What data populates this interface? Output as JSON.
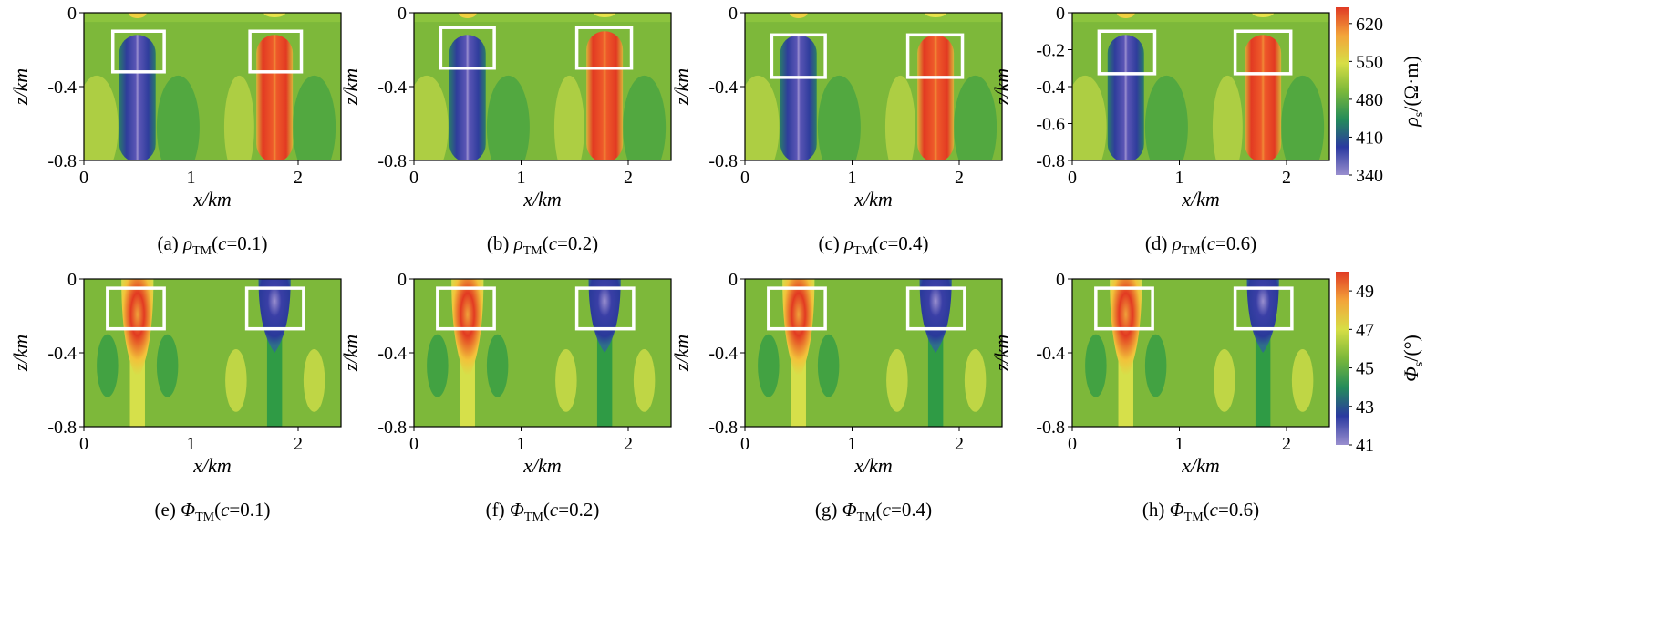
{
  "chart_data": [
    {
      "type": "heatmap",
      "caption": {
        "letter": "(a) ",
        "symbol": "ρ",
        "sub": "TM",
        "pre": "(",
        "ital": "c",
        "post": "=0.1)"
      },
      "quantity": "resistivity",
      "xlabel": "x/km",
      "ylabel": "z/km",
      "xticks": [
        "0",
        "1",
        "2"
      ],
      "yticks": [
        "0",
        "-0.4",
        "-0.8"
      ],
      "xlim": [
        0,
        2.4
      ],
      "ylim": [
        -0.8,
        0
      ],
      "anomalies": [
        {
          "x": 0.5,
          "kind": "low",
          "z_top": -0.12,
          "z_bottom": -0.8,
          "box": {
            "x0": 0.27,
            "x1": 0.75,
            "z0": -0.1,
            "z1": -0.32
          }
        },
        {
          "x": 1.78,
          "kind": "high",
          "z_top": -0.12,
          "z_bottom": -0.8,
          "box": {
            "x0": 1.55,
            "x1": 2.03,
            "z0": -0.1,
            "z1": -0.32
          }
        }
      ]
    },
    {
      "type": "heatmap",
      "caption": {
        "letter": "(b) ",
        "symbol": "ρ",
        "sub": "TM",
        "pre": "(",
        "ital": "c",
        "post": "=0.2)"
      },
      "quantity": "resistivity",
      "xlabel": "x/km",
      "ylabel": "z/km",
      "xticks": [
        "0",
        "1",
        "2"
      ],
      "yticks": [
        "0",
        "-0.4",
        "-0.8"
      ],
      "xlim": [
        0,
        2.4
      ],
      "ylim": [
        -0.8,
        0
      ],
      "anomalies": [
        {
          "x": 0.5,
          "kind": "low",
          "z_top": -0.12,
          "z_bottom": -0.8,
          "box": {
            "x0": 0.25,
            "x1": 0.75,
            "z0": -0.08,
            "z1": -0.3
          }
        },
        {
          "x": 1.78,
          "kind": "high",
          "z_top": -0.1,
          "z_bottom": -0.8,
          "box": {
            "x0": 1.52,
            "x1": 2.03,
            "z0": -0.08,
            "z1": -0.3
          }
        }
      ]
    },
    {
      "type": "heatmap",
      "caption": {
        "letter": "(c) ",
        "symbol": "ρ",
        "sub": "TM",
        "pre": "(",
        "ital": "c",
        "post": "=0.4)"
      },
      "quantity": "resistivity",
      "xlabel": "x/km",
      "ylabel": "z/km",
      "xticks": [
        "0",
        "1",
        "2"
      ],
      "yticks": [
        "0",
        "-0.4",
        "-0.8"
      ],
      "xlim": [
        0,
        2.4
      ],
      "ylim": [
        -0.8,
        0
      ],
      "anomalies": [
        {
          "x": 0.5,
          "kind": "low",
          "z_top": -0.12,
          "z_bottom": -0.8,
          "box": {
            "x0": 0.25,
            "x1": 0.75,
            "z0": -0.12,
            "z1": -0.35
          }
        },
        {
          "x": 1.78,
          "kind": "high",
          "z_top": -0.12,
          "z_bottom": -0.8,
          "box": {
            "x0": 1.52,
            "x1": 2.03,
            "z0": -0.12,
            "z1": -0.35
          }
        }
      ]
    },
    {
      "type": "heatmap",
      "caption": {
        "letter": "(d) ",
        "symbol": "ρ",
        "sub": "TM",
        "pre": "(",
        "ital": "c",
        "post": "=0.6)"
      },
      "quantity": "resistivity",
      "xlabel": "x/km",
      "ylabel": "z/km",
      "xticks": [
        "0",
        "1",
        "2"
      ],
      "yticks": [
        "0",
        "-0.2",
        "-0.4",
        "-0.6",
        "-0.8"
      ],
      "xlim": [
        0,
        2.4
      ],
      "ylim": [
        -0.8,
        0
      ],
      "anomalies": [
        {
          "x": 0.5,
          "kind": "low",
          "z_top": -0.12,
          "z_bottom": -0.8,
          "box": {
            "x0": 0.25,
            "x1": 0.77,
            "z0": -0.1,
            "z1": -0.33
          }
        },
        {
          "x": 1.78,
          "kind": "high",
          "z_top": -0.12,
          "z_bottom": -0.8,
          "box": {
            "x0": 1.52,
            "x1": 2.04,
            "z0": -0.1,
            "z1": -0.33
          }
        }
      ]
    },
    {
      "type": "heatmap",
      "caption": {
        "letter": "(e) ",
        "symbol": "Φ",
        "sub": "TM",
        "pre": "(",
        "ital": "c",
        "post": "=0.1)"
      },
      "quantity": "phase",
      "xlabel": "x/km",
      "ylabel": "z/km",
      "xticks": [
        "0",
        "1",
        "2"
      ],
      "yticks": [
        "0",
        "-0.4",
        "-0.8"
      ],
      "xlim": [
        0,
        2.4
      ],
      "ylim": [
        -0.8,
        0
      ],
      "anomalies": [
        {
          "x": 0.5,
          "kind": "high",
          "z_top": 0,
          "z_bottom": -0.55,
          "box": {
            "x0": 0.22,
            "x1": 0.75,
            "z0": -0.05,
            "z1": -0.27
          }
        },
        {
          "x": 1.78,
          "kind": "low",
          "z_top": 0,
          "z_bottom": -0.4,
          "box": {
            "x0": 1.52,
            "x1": 2.05,
            "z0": -0.05,
            "z1": -0.27
          }
        }
      ]
    },
    {
      "type": "heatmap",
      "caption": {
        "letter": "(f) ",
        "symbol": "Φ",
        "sub": "TM",
        "pre": "(",
        "ital": "c",
        "post": "=0.2)"
      },
      "quantity": "phase",
      "xlabel": "x/km",
      "ylabel": "z/km",
      "xticks": [
        "0",
        "1",
        "2"
      ],
      "yticks": [
        "0",
        "-0.4",
        "-0.8"
      ],
      "xlim": [
        0,
        2.4
      ],
      "ylim": [
        -0.8,
        0
      ],
      "anomalies": [
        {
          "x": 0.5,
          "kind": "high",
          "z_top": 0,
          "z_bottom": -0.55,
          "box": {
            "x0": 0.22,
            "x1": 0.75,
            "z0": -0.05,
            "z1": -0.27
          }
        },
        {
          "x": 1.78,
          "kind": "low",
          "z_top": 0,
          "z_bottom": -0.4,
          "box": {
            "x0": 1.52,
            "x1": 2.05,
            "z0": -0.05,
            "z1": -0.27
          }
        }
      ]
    },
    {
      "type": "heatmap",
      "caption": {
        "letter": "(g) ",
        "symbol": "Φ",
        "sub": "TM",
        "pre": "(",
        "ital": "c",
        "post": "=0.4)"
      },
      "quantity": "phase",
      "xlabel": "x/km",
      "ylabel": "z/km",
      "xticks": [
        "0",
        "1",
        "2"
      ],
      "yticks": [
        "0",
        "-0.4",
        "-0.8"
      ],
      "xlim": [
        0,
        2.4
      ],
      "ylim": [
        -0.8,
        0
      ],
      "anomalies": [
        {
          "x": 0.5,
          "kind": "high",
          "z_top": 0,
          "z_bottom": -0.55,
          "box": {
            "x0": 0.22,
            "x1": 0.75,
            "z0": -0.05,
            "z1": -0.27
          }
        },
        {
          "x": 1.78,
          "kind": "low",
          "z_top": 0,
          "z_bottom": -0.4,
          "box": {
            "x0": 1.52,
            "x1": 2.05,
            "z0": -0.05,
            "z1": -0.27
          }
        }
      ]
    },
    {
      "type": "heatmap",
      "caption": {
        "letter": "(h) ",
        "symbol": "Φ",
        "sub": "TM",
        "pre": "(",
        "ital": "c",
        "post": "=0.6)"
      },
      "quantity": "phase",
      "xlabel": "x/km",
      "ylabel": "z/km",
      "xticks": [
        "0",
        "1",
        "2"
      ],
      "yticks": [
        "0",
        "-0.4",
        "-0.8"
      ],
      "xlim": [
        0,
        2.4
      ],
      "ylim": [
        -0.8,
        0
      ],
      "anomalies": [
        {
          "x": 0.5,
          "kind": "high",
          "z_top": 0,
          "z_bottom": -0.55,
          "box": {
            "x0": 0.22,
            "x1": 0.75,
            "z0": -0.05,
            "z1": -0.27
          }
        },
        {
          "x": 1.78,
          "kind": "low",
          "z_top": 0,
          "z_bottom": -0.4,
          "box": {
            "x0": 1.52,
            "x1": 2.05,
            "z0": -0.05,
            "z1": -0.27
          }
        }
      ]
    }
  ],
  "colorbars": [
    {
      "quantity": "resistivity",
      "ticks": [
        "340",
        "410",
        "480",
        "550",
        "620"
      ],
      "range": [
        340,
        650
      ],
      "label": {
        "symbol": "ρ",
        "sub": "s",
        "unit": "/(Ω·m)"
      }
    },
    {
      "quantity": "phase",
      "ticks": [
        "41",
        "43",
        "45",
        "47",
        "49"
      ],
      "range": [
        41,
        50
      ],
      "label": {
        "symbol": "Φ",
        "sub": "s",
        "unit": "/(°)"
      }
    }
  ],
  "colors": {
    "background": "#7db83a",
    "low": "#2f3d9c",
    "low_core": "#9a8fcf",
    "high": "#e23a22",
    "high_core": "#f08a36",
    "mid_light": "#d6e04a",
    "mid_dark": "#2f9b45",
    "box": "#ffffff",
    "ramp": [
      "#9a8fcf",
      "#2a39a0",
      "#248c5a",
      "#7bb83a",
      "#d7de45",
      "#f3a43a",
      "#e03a24"
    ]
  }
}
